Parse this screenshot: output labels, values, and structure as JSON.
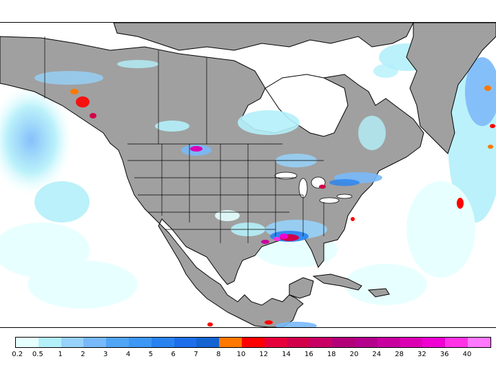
{
  "legend": {
    "ticks": [
      "0.2",
      "0.5",
      "1",
      "2",
      "3",
      "4",
      "5",
      "6",
      "7",
      "8",
      "10",
      "12",
      "14",
      "16",
      "18",
      "20",
      "24",
      "28",
      "32",
      "36",
      "40"
    ],
    "colors": [
      "#e6ffff",
      "#b4f0fa",
      "#96d2fa",
      "#78b9fa",
      "#50a5f5",
      "#3c97f5",
      "#2883f0",
      "#1e6eeb",
      "#1464d2",
      "#ff7800",
      "#ff0000",
      "#e6003c",
      "#d2004b",
      "#c80064",
      "#b40078",
      "#b4008c",
      "#c800a0",
      "#dc00b4",
      "#f000d2",
      "#ff32e6",
      "#ff78ff"
    ]
  },
  "map": {
    "land_color": "#a0a0a0",
    "border_color": "#000000",
    "background_color": "#ffffff"
  }
}
